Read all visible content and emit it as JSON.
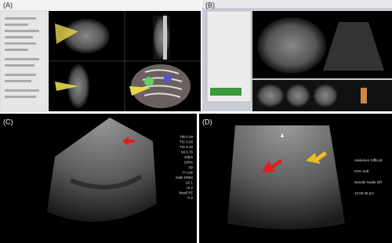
{
  "panels": [
    {
      "label": "(A)"
    },
    {
      "label": "(B)"
    },
    {
      "label": "(C)",
      "overlay": [
        "TIB 0.29",
        "TIC 0.26",
        "TIS 0.28",
        "MI 0.76",
        "40fps",
        "100%",
        "2D",
        "H Low",
        "SoBi DR60",
        "LD 1",
        "UI 2",
        "MaxEYE",
        "P 2"
      ]
    },
    {
      "label": "(D)",
      "overlay": [
        "Abdomen Difficult",
        "NTH Soft",
        "Needle Guide Off",
        "12:00:46 pm"
      ]
    }
  ]
}
